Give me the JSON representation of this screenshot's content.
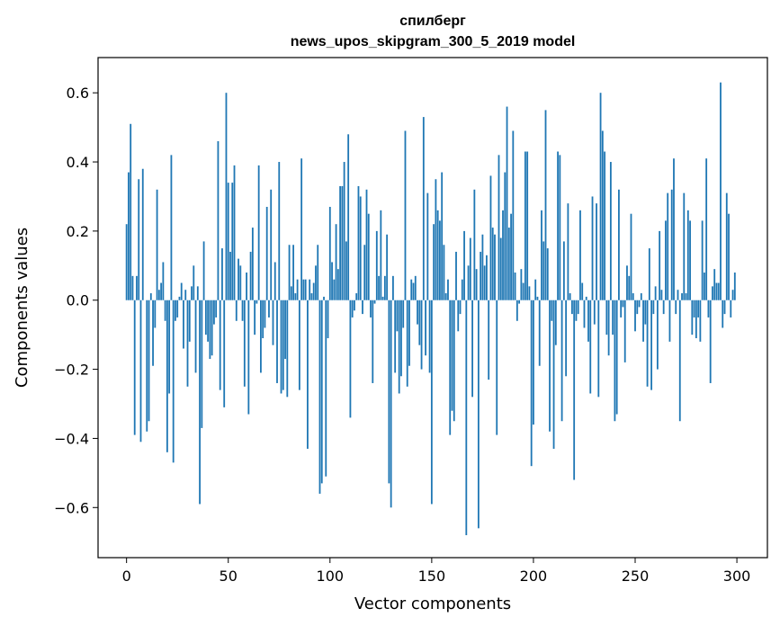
{
  "chart_data": {
    "type": "bar",
    "title": "спилберг",
    "subtitle": "news_upos_skipgram_300_5_2019 model",
    "xlabel": "Vector components",
    "ylabel": "Components values",
    "xlim": [
      -14,
      315
    ],
    "ylim": [
      -0.745,
      0.702
    ],
    "xticks": [
      0,
      50,
      100,
      150,
      200,
      250,
      300
    ],
    "yticks": [
      -0.6,
      -0.4,
      -0.2,
      0.0,
      0.2,
      0.4,
      0.6
    ],
    "xtick_labels": [
      "0",
      "50",
      "100",
      "150",
      "200",
      "250",
      "300"
    ],
    "ytick_labels": [
      "−0.6",
      "−0.4",
      "−0.2",
      "0.0",
      "0.2",
      "0.4",
      "0.6"
    ],
    "grid": false,
    "bar_color": "#1f77b4",
    "values": [
      0.22,
      0.37,
      0.51,
      0.07,
      -0.39,
      0.07,
      0.35,
      -0.41,
      0.38,
      0.0,
      -0.38,
      -0.35,
      0.02,
      -0.19,
      -0.08,
      0.32,
      0.03,
      0.05,
      0.11,
      -0.06,
      -0.44,
      -0.27,
      0.42,
      -0.47,
      -0.06,
      -0.05,
      0.01,
      0.05,
      -0.14,
      0.03,
      -0.25,
      -0.12,
      0.04,
      0.1,
      -0.21,
      0.04,
      -0.59,
      -0.37,
      0.17,
      -0.1,
      -0.12,
      -0.17,
      -0.16,
      -0.07,
      -0.05,
      0.46,
      -0.26,
      0.15,
      -0.31,
      0.6,
      0.34,
      0.14,
      0.34,
      0.39,
      -0.06,
      0.12,
      0.1,
      -0.06,
      -0.25,
      0.08,
      -0.33,
      0.14,
      0.21,
      -0.1,
      -0.01,
      0.39,
      -0.21,
      -0.11,
      -0.08,
      0.27,
      -0.05,
      0.32,
      -0.13,
      0.11,
      -0.24,
      0.4,
      -0.27,
      -0.26,
      -0.17,
      -0.28,
      0.16,
      0.04,
      0.16,
      0.02,
      0.06,
      -0.26,
      0.41,
      0.06,
      0.06,
      -0.43,
      0.06,
      0.02,
      0.05,
      0.1,
      0.16,
      -0.56,
      -0.53,
      0.01,
      -0.51,
      -0.11,
      0.27,
      0.11,
      0.06,
      0.22,
      0.09,
      0.33,
      0.33,
      0.4,
      0.17,
      0.48,
      -0.34,
      -0.05,
      -0.03,
      0.02,
      0.33,
      0.3,
      -0.04,
      0.16,
      0.32,
      0.25,
      -0.05,
      -0.24,
      -0.01,
      0.2,
      0.07,
      0.26,
      0.01,
      0.07,
      0.19,
      -0.53,
      -0.6,
      0.07,
      -0.21,
      -0.09,
      -0.27,
      -0.22,
      -0.08,
      0.49,
      -0.25,
      -0.19,
      0.06,
      0.05,
      0.07,
      -0.07,
      -0.13,
      -0.2,
      0.53,
      -0.16,
      0.31,
      -0.21,
      -0.59,
      0.22,
      0.35,
      0.26,
      0.23,
      0.37,
      0.16,
      0.02,
      0.06,
      -0.39,
      -0.32,
      -0.35,
      0.14,
      -0.09,
      -0.04,
      0.06,
      0.2,
      -0.68,
      0.1,
      0.18,
      -0.28,
      0.32,
      0.09,
      -0.66,
      0.14,
      0.19,
      0.1,
      0.13,
      -0.23,
      0.36,
      0.21,
      0.19,
      -0.39,
      0.42,
      0.18,
      0.26,
      0.37,
      0.56,
      0.21,
      0.25,
      0.49,
      0.08,
      -0.06,
      -0.01,
      0.09,
      0.05,
      0.43,
      0.43,
      0.04,
      -0.48,
      -0.36,
      0.06,
      0.01,
      -0.19,
      0.26,
      0.17,
      0.55,
      0.15,
      -0.38,
      -0.06,
      -0.43,
      -0.13,
      0.43,
      0.42,
      -0.35,
      0.17,
      -0.22,
      0.28,
      0.02,
      -0.04,
      -0.52,
      -0.06,
      -0.04,
      0.26,
      0.05,
      -0.08,
      0.01,
      -0.12,
      -0.27,
      0.3,
      -0.07,
      0.28,
      -0.28,
      0.6,
      0.49,
      0.43,
      -0.1,
      -0.16,
      0.4,
      -0.1,
      -0.35,
      -0.33,
      0.32,
      -0.05,
      -0.02,
      -0.18,
      0.1,
      0.07,
      0.25,
      0.02,
      -0.09,
      -0.04,
      -0.02,
      0.02,
      -0.12,
      -0.07,
      -0.25,
      0.15,
      -0.26,
      -0.04,
      0.04,
      -0.2,
      0.2,
      0.03,
      -0.04,
      0.23,
      0.31,
      -0.12,
      0.32,
      0.41,
      -0.04,
      0.03,
      -0.35,
      0.02,
      0.31,
      0.02,
      0.26,
      0.23,
      -0.1,
      -0.05,
      -0.11,
      -0.05,
      -0.12,
      0.23,
      0.08,
      0.41,
      -0.05,
      -0.24,
      0.04,
      0.09,
      0.05,
      0.05,
      0.63,
      -0.08,
      -0.04,
      0.31,
      0.25,
      -0.05,
      0.03,
      0.08
    ]
  }
}
